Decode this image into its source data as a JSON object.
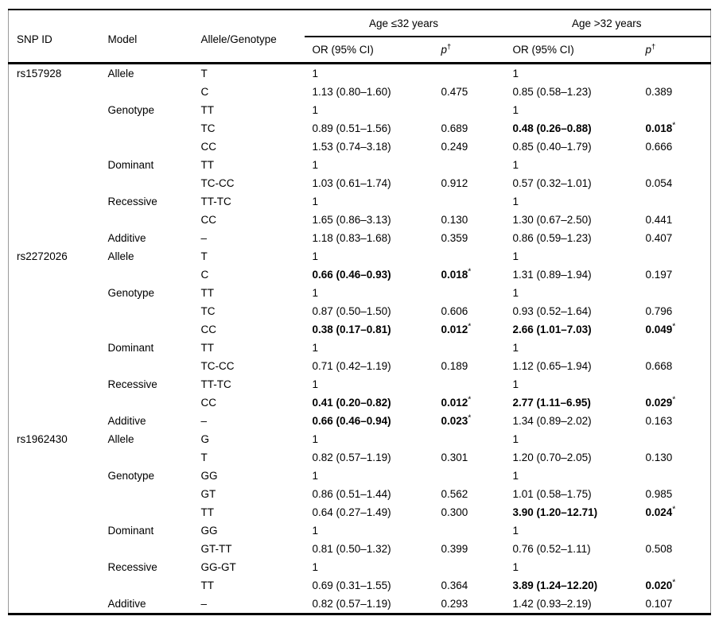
{
  "table": {
    "header": {
      "snp_id": "SNP ID",
      "model": "Model",
      "allele_genotype": "Allele/Genotype",
      "group_age_le32": "Age ≤32 years",
      "group_age_gt32": "Age >32 years",
      "or_ci": "OR (95% CI)",
      "p": "p",
      "p_dagger": "†"
    },
    "rows": [
      {
        "snp": "rs157928",
        "model": "Allele",
        "genotype": "T",
        "or1": "1",
        "p1": "",
        "or2": "1",
        "p2": "",
        "bold1": false,
        "bold2": false
      },
      {
        "snp": "",
        "model": "",
        "genotype": "C",
        "or1": "1.13 (0.80–1.60)",
        "p1": "0.475",
        "or2": "0.85 (0.58–1.23)",
        "p2": "0.389",
        "bold1": false,
        "bold2": false
      },
      {
        "snp": "",
        "model": "Genotype",
        "genotype": "TT",
        "or1": "1",
        "p1": "",
        "or2": "1",
        "p2": "",
        "bold1": false,
        "bold2": false
      },
      {
        "snp": "",
        "model": "",
        "genotype": "TC",
        "or1": "0.89 (0.51–1.56)",
        "p1": "0.689",
        "or2": "0.48 (0.26–0.88)",
        "p2": "0.018*",
        "bold1": false,
        "bold2": true
      },
      {
        "snp": "",
        "model": "",
        "genotype": "CC",
        "or1": "1.53 (0.74–3.18)",
        "p1": "0.249",
        "or2": "0.85 (0.40–1.79)",
        "p2": "0.666",
        "bold1": false,
        "bold2": false
      },
      {
        "snp": "",
        "model": "Dominant",
        "genotype": "TT",
        "or1": "1",
        "p1": "",
        "or2": "1",
        "p2": "",
        "bold1": false,
        "bold2": false
      },
      {
        "snp": "",
        "model": "",
        "genotype": "TC-CC",
        "or1": "1.03 (0.61–1.74)",
        "p1": "0.912",
        "or2": "0.57 (0.32–1.01)",
        "p2": "0.054",
        "bold1": false,
        "bold2": false
      },
      {
        "snp": "",
        "model": "Recessive",
        "genotype": "TT-TC",
        "or1": "1",
        "p1": "",
        "or2": "1",
        "p2": "",
        "bold1": false,
        "bold2": false
      },
      {
        "snp": "",
        "model": "",
        "genotype": "CC",
        "or1": "1.65 (0.86–3.13)",
        "p1": "0.130",
        "or2": "1.30 (0.67–2.50)",
        "p2": "0.441",
        "bold1": false,
        "bold2": false
      },
      {
        "snp": "",
        "model": "Additive",
        "genotype": "–",
        "or1": "1.18 (0.83–1.68)",
        "p1": "0.359",
        "or2": "0.86 (0.59–1.23)",
        "p2": "0.407",
        "bold1": false,
        "bold2": false
      },
      {
        "snp": "rs2272026",
        "model": "Allele",
        "genotype": "T",
        "or1": "1",
        "p1": "",
        "or2": "1",
        "p2": "",
        "bold1": false,
        "bold2": false
      },
      {
        "snp": "",
        "model": "",
        "genotype": "C",
        "or1": "0.66 (0.46–0.93)",
        "p1": "0.018*",
        "or2": "1.31 (0.89–1.94)",
        "p2": "0.197",
        "bold1": true,
        "bold2": false
      },
      {
        "snp": "",
        "model": "Genotype",
        "genotype": "TT",
        "or1": "1",
        "p1": "",
        "or2": "1",
        "p2": "",
        "bold1": false,
        "bold2": false
      },
      {
        "snp": "",
        "model": "",
        "genotype": "TC",
        "or1": "0.87 (0.50–1.50)",
        "p1": "0.606",
        "or2": "0.93 (0.52–1.64)",
        "p2": "0.796",
        "bold1": false,
        "bold2": false
      },
      {
        "snp": "",
        "model": "",
        "genotype": "CC",
        "or1": "0.38 (0.17–0.81)",
        "p1": "0.012*",
        "or2": "2.66 (1.01–7.03)",
        "p2": "0.049*",
        "bold1": true,
        "bold2": true
      },
      {
        "snp": "",
        "model": "Dominant",
        "genotype": "TT",
        "or1": "1",
        "p1": "",
        "or2": "1",
        "p2": "",
        "bold1": false,
        "bold2": false
      },
      {
        "snp": "",
        "model": "",
        "genotype": "TC-CC",
        "or1": "0.71 (0.42–1.19)",
        "p1": "0.189",
        "or2": "1.12 (0.65–1.94)",
        "p2": "0.668",
        "bold1": false,
        "bold2": false
      },
      {
        "snp": "",
        "model": "Recessive",
        "genotype": "TT-TC",
        "or1": "1",
        "p1": "",
        "or2": "1",
        "p2": "",
        "bold1": false,
        "bold2": false
      },
      {
        "snp": "",
        "model": "",
        "genotype": "CC",
        "or1": "0.41 (0.20–0.82)",
        "p1": "0.012*",
        "or2": "2.77 (1.11–6.95)",
        "p2": "0.029*",
        "bold1": true,
        "bold2": true
      },
      {
        "snp": "",
        "model": "Additive",
        "genotype": "–",
        "or1": "0.66 (0.46–0.94)",
        "p1": "0.023*",
        "or2": "1.34 (0.89–2.02)",
        "p2": "0.163",
        "bold1": true,
        "bold2": false
      },
      {
        "snp": "rs1962430",
        "model": "Allele",
        "genotype": "G",
        "or1": "1",
        "p1": "",
        "or2": "1",
        "p2": "",
        "bold1": false,
        "bold2": false
      },
      {
        "snp": "",
        "model": "",
        "genotype": "T",
        "or1": "0.82 (0.57–1.19)",
        "p1": "0.301",
        "or2": "1.20 (0.70–2.05)",
        "p2": "0.130",
        "bold1": false,
        "bold2": false
      },
      {
        "snp": "",
        "model": "Genotype",
        "genotype": "GG",
        "or1": "1",
        "p1": "",
        "or2": "1",
        "p2": "",
        "bold1": false,
        "bold2": false
      },
      {
        "snp": "",
        "model": "",
        "genotype": "GT",
        "or1": "0.86 (0.51–1.44)",
        "p1": "0.562",
        "or2": "1.01 (0.58–1.75)",
        "p2": "0.985",
        "bold1": false,
        "bold2": false
      },
      {
        "snp": "",
        "model": "",
        "genotype": "TT",
        "or1": "0.64 (0.27–1.49)",
        "p1": "0.300",
        "or2": "3.90 (1.20–12.71)",
        "p2": "0.024*",
        "bold1": false,
        "bold2": true
      },
      {
        "snp": "",
        "model": "Dominant",
        "genotype": "GG",
        "or1": "1",
        "p1": "",
        "or2": "1",
        "p2": "",
        "bold1": false,
        "bold2": false
      },
      {
        "snp": "",
        "model": "",
        "genotype": "GT-TT",
        "or1": "0.81 (0.50–1.32)",
        "p1": "0.399",
        "or2": "0.76 (0.52–1.11)",
        "p2": "0.508",
        "bold1": false,
        "bold2": false
      },
      {
        "snp": "",
        "model": "Recessive",
        "genotype": "GG-GT",
        "or1": "1",
        "p1": "",
        "or2": "1",
        "p2": "",
        "bold1": false,
        "bold2": false
      },
      {
        "snp": "",
        "model": "",
        "genotype": "TT",
        "or1": "0.69 (0.31–1.55)",
        "p1": "0.364",
        "or2": "3.89 (1.24–12.20)",
        "p2": "0.020*",
        "bold1": false,
        "bold2": true
      },
      {
        "snp": "",
        "model": "Additive",
        "genotype": "–",
        "or1": "0.82 (0.57–1.19)",
        "p1": "0.293",
        "or2": "1.42 (0.93–2.19)",
        "p2": "0.107",
        "bold1": false,
        "bold2": false
      }
    ]
  }
}
